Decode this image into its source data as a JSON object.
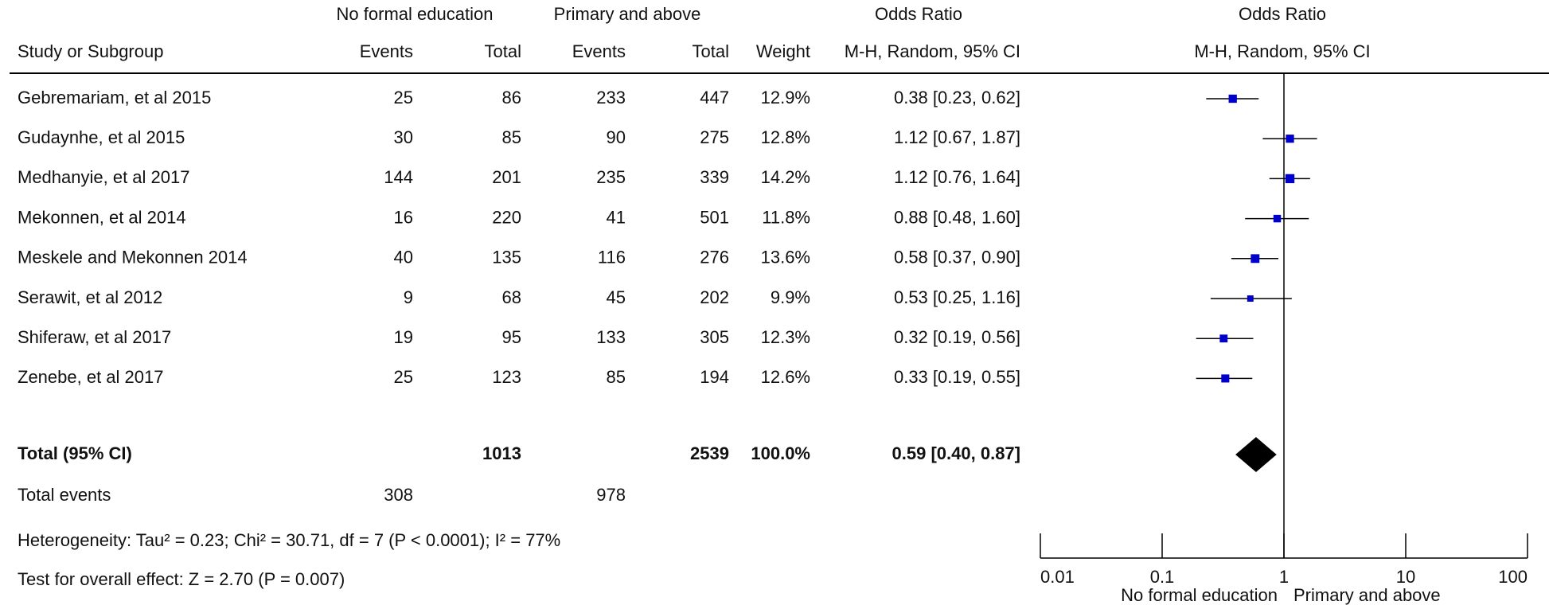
{
  "chart_data": {
    "type": "forest",
    "group_headers": [
      "No formal education",
      "Primary and above",
      "Odds Ratio",
      "Odds Ratio"
    ],
    "columns": [
      "Study or Subgroup",
      "Events",
      "Total",
      "Events",
      "Total",
      "Weight",
      "M-H, Random, 95% CI",
      "M-H, Random, 95% CI"
    ],
    "studies": [
      {
        "name": "Gebremariam, et al 2015",
        "events1": 25,
        "total1": 86,
        "events2": 233,
        "total2": 447,
        "weight": 12.9,
        "weight_label": "12.9%",
        "or": 0.38,
        "ci_low": 0.23,
        "ci_high": 0.62,
        "or_label": "0.38 [0.23, 0.62]"
      },
      {
        "name": "Gudaynhe,  et al 2015",
        "events1": 30,
        "total1": 85,
        "events2": 90,
        "total2": 275,
        "weight": 12.8,
        "weight_label": "12.8%",
        "or": 1.12,
        "ci_low": 0.67,
        "ci_high": 1.87,
        "or_label": "1.12 [0.67, 1.87]"
      },
      {
        "name": "Medhanyie, et al 2017",
        "events1": 144,
        "total1": 201,
        "events2": 235,
        "total2": 339,
        "weight": 14.2,
        "weight_label": "14.2%",
        "or": 1.12,
        "ci_low": 0.76,
        "ci_high": 1.64,
        "or_label": "1.12 [0.76, 1.64]"
      },
      {
        "name": "Mekonnen, et al 2014",
        "events1": 16,
        "total1": 220,
        "events2": 41,
        "total2": 501,
        "weight": 11.8,
        "weight_label": "11.8%",
        "or": 0.88,
        "ci_low": 0.48,
        "ci_high": 1.6,
        "or_label": "0.88 [0.48, 1.60]"
      },
      {
        "name": "Meskele and Mekonnen  2014",
        "events1": 40,
        "total1": 135,
        "events2": 116,
        "total2": 276,
        "weight": 13.6,
        "weight_label": "13.6%",
        "or": 0.58,
        "ci_low": 0.37,
        "ci_high": 0.9,
        "or_label": "0.58 [0.37, 0.90]"
      },
      {
        "name": "Serawit, et al 2012",
        "events1": 9,
        "total1": 68,
        "events2": 45,
        "total2": 202,
        "weight": 9.9,
        "weight_label": "9.9%",
        "or": 0.53,
        "ci_low": 0.25,
        "ci_high": 1.16,
        "or_label": "0.53 [0.25, 1.16]"
      },
      {
        "name": "Shiferaw, et al 2017",
        "events1": 19,
        "total1": 95,
        "events2": 133,
        "total2": 305,
        "weight": 12.3,
        "weight_label": "12.3%",
        "or": 0.32,
        "ci_low": 0.19,
        "ci_high": 0.56,
        "or_label": "0.32 [0.19, 0.56]"
      },
      {
        "name": "Zenebe, et al  2017",
        "events1": 25,
        "total1": 123,
        "events2": 85,
        "total2": 194,
        "weight": 12.6,
        "weight_label": "12.6%",
        "or": 0.33,
        "ci_low": 0.19,
        "ci_high": 0.55,
        "or_label": "0.33 [0.19, 0.55]"
      }
    ],
    "total": {
      "name": "Total (95% CI)",
      "total1": 1013,
      "total2": 2539,
      "weight": 100.0,
      "weight_label": "100.0%",
      "or": 0.59,
      "ci_low": 0.4,
      "ci_high": 0.87,
      "or_label": "0.59 [0.40, 0.87]"
    },
    "total_events": {
      "name": "Total events",
      "events1": 308,
      "events2": 978
    },
    "heterogeneity": "Heterogeneity: Tau² = 0.23; Chi² = 30.71, df = 7 (P < 0.0001); I² = 77%",
    "overall_effect": "Test for overall effect: Z = 2.70 (P = 0.007)",
    "log_scale": true,
    "xlim": [
      0.01,
      100
    ],
    "xticks": [
      0.01,
      0.1,
      1,
      10,
      100
    ],
    "favours": [
      "No formal education",
      "Primary and above"
    ],
    "marker_color": "#0000cc",
    "diamond_color": "#000000"
  }
}
